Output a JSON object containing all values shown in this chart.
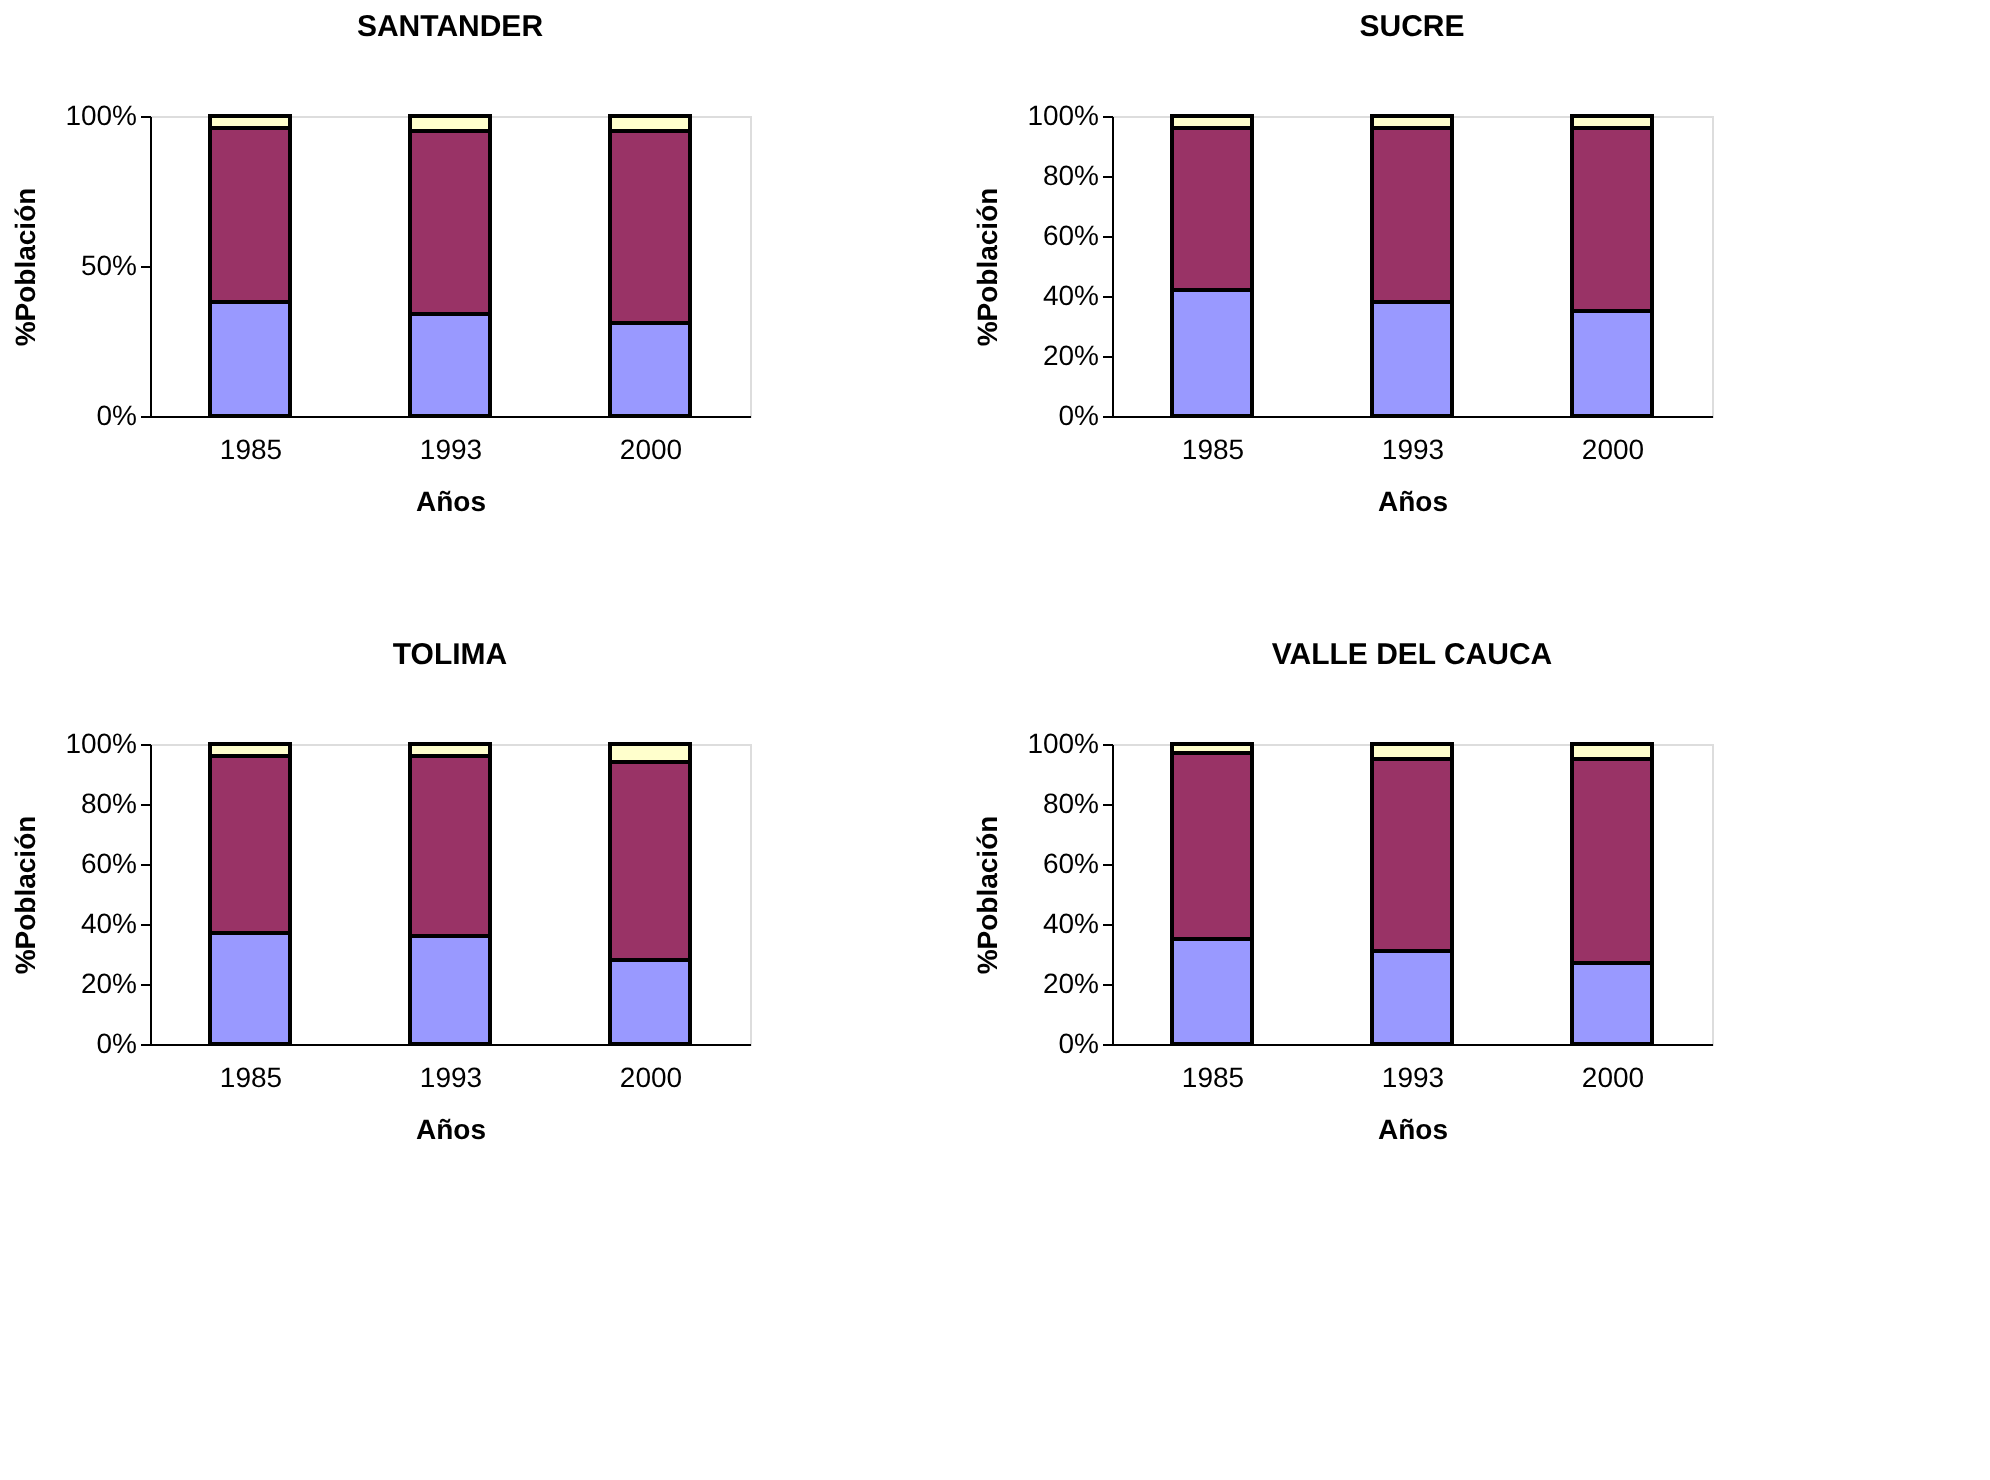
{
  "chart_data": [
    {
      "type": "bar",
      "title": "SANTANDER",
      "xlabel": "Años",
      "ylabel": "%Población",
      "categories": [
        "1985",
        "1993",
        "2000"
      ],
      "stacked": true,
      "ylim": [
        0,
        100
      ],
      "yticks": [
        {
          "value": 0,
          "label": "0%"
        },
        {
          "value": 50,
          "label": "50%"
        },
        {
          "value": 100,
          "label": "100%"
        }
      ],
      "grid": false,
      "legend": false,
      "series": [
        {
          "color": "#9999ff",
          "values": [
            38,
            34,
            31
          ]
        },
        {
          "color": "#993366",
          "values": [
            58,
            61,
            64
          ]
        },
        {
          "color": "#ffffcc",
          "values": [
            4,
            5,
            5
          ]
        }
      ]
    },
    {
      "type": "bar",
      "title": "SUCRE",
      "xlabel": "Años",
      "ylabel": "%Población",
      "categories": [
        "1985",
        "1993",
        "2000"
      ],
      "stacked": true,
      "ylim": [
        0,
        100
      ],
      "yticks": [
        {
          "value": 0,
          "label": "0%"
        },
        {
          "value": 20,
          "label": "20%"
        },
        {
          "value": 40,
          "label": "40%"
        },
        {
          "value": 60,
          "label": "60%"
        },
        {
          "value": 80,
          "label": "80%"
        },
        {
          "value": 100,
          "label": "100%"
        }
      ],
      "grid": false,
      "legend": false,
      "series": [
        {
          "color": "#9999ff",
          "values": [
            42,
            38,
            35
          ]
        },
        {
          "color": "#993366",
          "values": [
            54,
            58,
            61
          ]
        },
        {
          "color": "#ffffcc",
          "values": [
            4,
            4,
            4
          ]
        }
      ]
    },
    {
      "type": "bar",
      "title": "TOLIMA",
      "xlabel": "Años",
      "ylabel": "%Población",
      "categories": [
        "1985",
        "1993",
        "2000"
      ],
      "stacked": true,
      "ylim": [
        0,
        100
      ],
      "yticks": [
        {
          "value": 0,
          "label": "0%"
        },
        {
          "value": 20,
          "label": "20%"
        },
        {
          "value": 40,
          "label": "40%"
        },
        {
          "value": 60,
          "label": "60%"
        },
        {
          "value": 80,
          "label": "80%"
        },
        {
          "value": 100,
          "label": "100%"
        }
      ],
      "grid": false,
      "legend": false,
      "series": [
        {
          "color": "#9999ff",
          "values": [
            37,
            36,
            28
          ]
        },
        {
          "color": "#993366",
          "values": [
            59,
            60,
            66
          ]
        },
        {
          "color": "#ffffcc",
          "values": [
            4,
            4,
            6
          ]
        }
      ]
    },
    {
      "type": "bar",
      "title": "VALLE DEL CAUCA",
      "xlabel": "Años",
      "ylabel": "%Población",
      "categories": [
        "1985",
        "1993",
        "2000"
      ],
      "stacked": true,
      "ylim": [
        0,
        100
      ],
      "yticks": [
        {
          "value": 0,
          "label": "0%"
        },
        {
          "value": 20,
          "label": "20%"
        },
        {
          "value": 40,
          "label": "40%"
        },
        {
          "value": 60,
          "label": "60%"
        },
        {
          "value": 80,
          "label": "80%"
        },
        {
          "value": 100,
          "label": "100%"
        }
      ],
      "grid": false,
      "legend": false,
      "series": [
        {
          "color": "#9999ff",
          "values": [
            35,
            31,
            27
          ]
        },
        {
          "color": "#993366",
          "values": [
            62,
            64,
            68
          ]
        },
        {
          "color": "#ffffcc",
          "values": [
            3,
            5,
            5
          ]
        }
      ]
    }
  ]
}
